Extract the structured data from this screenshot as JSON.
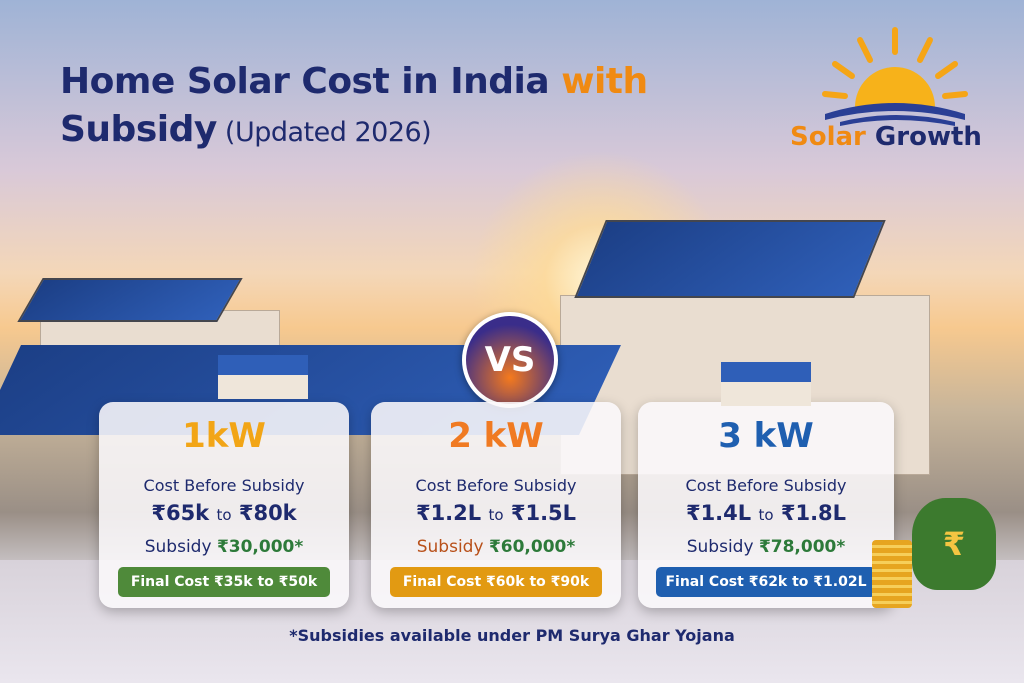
{
  "title": {
    "line1": "Home Solar Cost in India ",
    "accent": "with",
    "line2": "Subsidy",
    "suffix": " (Updated 2026)"
  },
  "logo": {
    "name_part1": "Solar ",
    "name_part2": "Growth"
  },
  "vs_label": "VS",
  "colors": {
    "navy": "#1e2a6e",
    "orange": "#f08a12",
    "green": "#4f8a3a",
    "amber": "#e29a12",
    "blue": "#1f5fb0"
  },
  "cards": [
    {
      "kw": "1kW",
      "kw_color": "#f2a516",
      "label": "Cost Before Subsidy",
      "from": "₹65k",
      "to_word": "to",
      "to": "₹80k",
      "subsidy_label": "Subsidy",
      "subsidy_value": "₹30,000*",
      "final": "Final Cost ₹35k to ₹50k",
      "final_color": "#4f8a3a"
    },
    {
      "kw": "2 kW",
      "kw_color": "#f07a22",
      "label": "Cost Before Subsidy",
      "from": "₹1.2L",
      "to_word": "to",
      "to": "₹1.5L",
      "subsidy_label": "Subsidy",
      "subsidy_value": "₹60,000*",
      "final": "Final Cost ₹60k to ₹90k",
      "final_color": "#e29a12"
    },
    {
      "kw": "3 kW",
      "kw_color": "#1f5fb0",
      "label": "Cost Before Subsidy",
      "from": "₹1.4L",
      "to_word": "to",
      "to": "₹1.8L",
      "subsidy_label": "Subsidy",
      "subsidy_value": "₹78,000*",
      "final": "Final Cost ₹62k to ₹1.02L",
      "final_color": "#1f5fb0"
    }
  ],
  "money_bag_symbol": "₹",
  "footnote": "*Subsidies available under PM Surya Ghar Yojana"
}
